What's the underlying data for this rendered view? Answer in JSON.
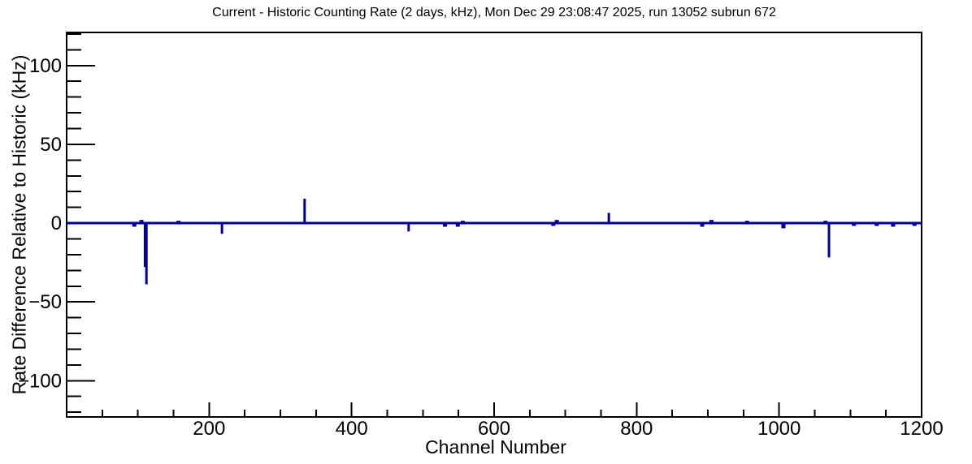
{
  "page": {
    "background": "#ffffff"
  },
  "chart_data": {
    "type": "line",
    "title": "Current - Historic Counting Rate (2 days, kHz), Mon Dec 29 23:08:47 2025, run 13052 subrun 672",
    "xlabel": "Channel Number",
    "ylabel": "Rate Difference Relative to Historic (kHz)",
    "xlim": [
      0,
      1200
    ],
    "ylim": [
      -123,
      121
    ],
    "grid": "off",
    "legend": "none",
    "x_major_ticks": [
      200,
      400,
      600,
      800,
      1000,
      1200
    ],
    "x_tick_labels": [
      "200",
      "400",
      "600",
      "800",
      "1000",
      "1200"
    ],
    "x_minor_step": 50,
    "y_major_ticks": [
      100,
      50,
      0,
      -50,
      -100
    ],
    "y_tick_labels": [
      "100",
      "50",
      "0",
      "−50",
      "−100"
    ],
    "y_minor_step": 10,
    "line_color": "#000099",
    "frame_color": "#000000",
    "baseline_value": 0,
    "series": [
      {
        "name": "rate-difference-vs-channel",
        "baseline_span": [
          0,
          1200
        ],
        "spikes": [
          {
            "channel": 95,
            "value": -1.5
          },
          {
            "channel": 105,
            "value": 2
          },
          {
            "channel": 110,
            "value": -27
          },
          {
            "channel": 112,
            "value": -38
          },
          {
            "channel": 157,
            "value": 1.5
          },
          {
            "channel": 218,
            "value": -6
          },
          {
            "channel": 334,
            "value": 15.5
          },
          {
            "channel": 480,
            "value": -4.5
          },
          {
            "channel": 531,
            "value": -1.5
          },
          {
            "channel": 549,
            "value": -1.5
          },
          {
            "channel": 556,
            "value": 1.5
          },
          {
            "channel": 683,
            "value": -1
          },
          {
            "channel": 688,
            "value": 2
          },
          {
            "channel": 761,
            "value": 6.5
          },
          {
            "channel": 892,
            "value": -1.5
          },
          {
            "channel": 905,
            "value": 2
          },
          {
            "channel": 955,
            "value": 1.5
          },
          {
            "channel": 1006,
            "value": -2.5
          },
          {
            "channel": 1065,
            "value": 1.5
          },
          {
            "channel": 1070,
            "value": -21
          },
          {
            "channel": 1105,
            "value": -1
          },
          {
            "channel": 1137,
            "value": -1
          },
          {
            "channel": 1160,
            "value": -1.5
          },
          {
            "channel": 1190,
            "value": -1
          }
        ]
      }
    ]
  }
}
